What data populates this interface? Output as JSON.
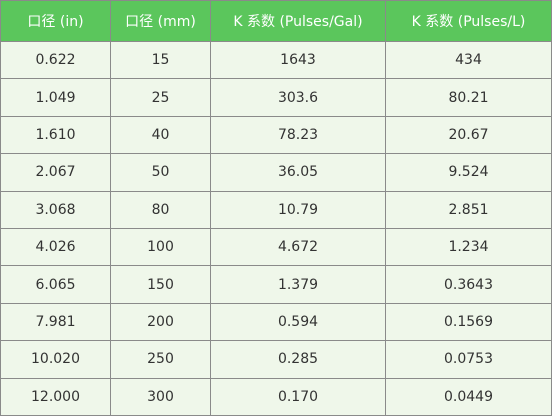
{
  "table": {
    "header": [
      "口径 (in)",
      "口径 (mm)",
      "K 系数 (Pulses/Gal)",
      "K 系数 (Pulses/L)"
    ],
    "rows": [
      [
        "0.622",
        "15",
        "1643",
        "434"
      ],
      [
        "1.049",
        "25",
        "303.6",
        "80.21"
      ],
      [
        "1.610",
        "40",
        "78.23",
        "20.67"
      ],
      [
        "2.067",
        "50",
        "36.05",
        "9.524"
      ],
      [
        "3.068",
        "80",
        "10.79",
        "2.851"
      ],
      [
        "4.026",
        "100",
        "4.672",
        "1.234"
      ],
      [
        "6.065",
        "150",
        "1.379",
        "0.3643"
      ],
      [
        "7.981",
        "200",
        "0.594",
        "0.1569"
      ],
      [
        "10.020",
        "250",
        "0.285",
        "0.0753"
      ],
      [
        "12.000",
        "300",
        "0.170",
        "0.0449"
      ]
    ]
  }
}
